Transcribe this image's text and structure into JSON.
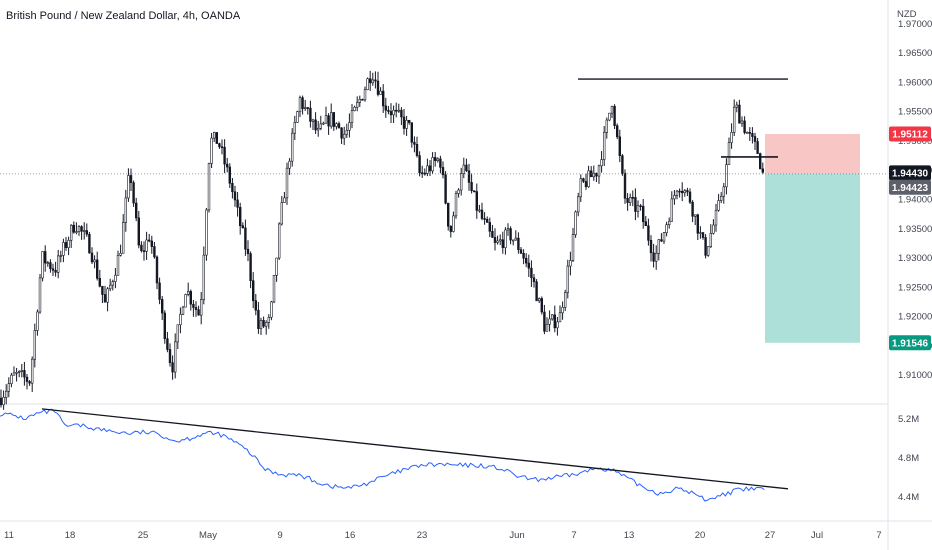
{
  "title": "British Pound / New Zealand Dollar, 4h, OANDA",
  "colors": {
    "candle": "#131722",
    "stop_zone": "#f8bcbc",
    "target_zone": "#a3ddd5",
    "stop_badge": "#f23645",
    "target_badge": "#089981",
    "current_badge": "#131722",
    "last_badge": "#5d606b",
    "indicator": "#2962ff",
    "trendline": "#131722"
  },
  "chart_data": [
    {
      "type": "candlestick",
      "symbol": "GBPNZD",
      "title": "British Pound / New Zealand Dollar, 4h, OANDA",
      "y_unit": "NZD",
      "ylim": [
        1.905,
        1.974
      ],
      "y_ticks": [
        1.97,
        1.965,
        1.96,
        1.955,
        1.95,
        1.945,
        1.94,
        1.935,
        1.93,
        1.925,
        1.92,
        1.915,
        1.91
      ],
      "x_ticks": [
        "11",
        "18",
        "25",
        "May",
        "9",
        "16",
        "23",
        "Jun",
        "7",
        "13",
        "20",
        "27",
        "Jul",
        "7"
      ],
      "price_path": [
        [
          0,
          1.906
        ],
        [
          15,
          1.91
        ],
        [
          30,
          1.909
        ],
        [
          42,
          1.93
        ],
        [
          55,
          1.928
        ],
        [
          75,
          1.936
        ],
        [
          90,
          1.932
        ],
        [
          105,
          1.922
        ],
        [
          120,
          1.931
        ],
        [
          130,
          1.945
        ],
        [
          140,
          1.93
        ],
        [
          150,
          1.934
        ],
        [
          162,
          1.92
        ],
        [
          172,
          1.911
        ],
        [
          185,
          1.925
        ],
        [
          200,
          1.92
        ],
        [
          210,
          1.95
        ],
        [
          218,
          1.95
        ],
        [
          230,
          1.943
        ],
        [
          248,
          1.93
        ],
        [
          258,
          1.918
        ],
        [
          270,
          1.919
        ],
        [
          280,
          1.936
        ],
        [
          290,
          1.948
        ],
        [
          300,
          1.957
        ],
        [
          318,
          1.951
        ],
        [
          330,
          1.954
        ],
        [
          345,
          1.951
        ],
        [
          360,
          1.957
        ],
        [
          372,
          1.962
        ],
        [
          385,
          1.956
        ],
        [
          398,
          1.954
        ],
        [
          410,
          1.952
        ],
        [
          420,
          1.944
        ],
        [
          440,
          1.947
        ],
        [
          450,
          1.934
        ],
        [
          462,
          1.946
        ],
        [
          478,
          1.938
        ],
        [
          495,
          1.932
        ],
        [
          510,
          1.934
        ],
        [
          522,
          1.931
        ],
        [
          535,
          1.925
        ],
        [
          545,
          1.918
        ],
        [
          560,
          1.92
        ],
        [
          570,
          1.93
        ],
        [
          580,
          1.942
        ],
        [
          598,
          1.945
        ],
        [
          612,
          1.957
        ],
        [
          625,
          1.94
        ],
        [
          640,
          1.938
        ],
        [
          655,
          1.93
        ],
        [
          665,
          1.935
        ],
        [
          678,
          1.943
        ],
        [
          690,
          1.94
        ],
        [
          705,
          1.931
        ],
        [
          718,
          1.938
        ],
        [
          726,
          1.945
        ],
        [
          735,
          1.956
        ],
        [
          748,
          1.951
        ],
        [
          758,
          1.948
        ],
        [
          763,
          1.9442
        ]
      ],
      "current_price": 1.9443,
      "last_price": 1.94423,
      "price_labels": {
        "stop": "1.95112",
        "current": "1.94430",
        "last": "1.94423",
        "target": "1.91546"
      },
      "annotations": {
        "resistance_level": 1.9605,
        "entry_marker": 1.9472,
        "short_position": {
          "entry": 1.9443,
          "stop_loss": 1.95112,
          "take_profit": 1.91546
        }
      }
    },
    {
      "type": "line",
      "name": "indicator",
      "y_ticks": [
        "5.2M",
        "4.8M",
        "4.4M"
      ],
      "y_ticks_values": [
        5.2,
        4.8,
        4.4
      ],
      "ylim": [
        4.15,
        5.35
      ],
      "series": [
        {
          "values_path": [
            [
              0,
              5.25
            ],
            [
              15,
              5.23
            ],
            [
              25,
              5.2
            ],
            [
              40,
              5.26
            ],
            [
              55,
              5.28
            ],
            [
              65,
              5.12
            ],
            [
              80,
              5.13
            ],
            [
              95,
              5.1
            ],
            [
              110,
              5.07
            ],
            [
              130,
              5.05
            ],
            [
              145,
              5.06
            ],
            [
              160,
              5.04
            ],
            [
              175,
              4.97
            ],
            [
              190,
              5.0
            ],
            [
              205,
              5.05
            ],
            [
              220,
              5.04
            ],
            [
              235,
              4.96
            ],
            [
              250,
              4.85
            ],
            [
              265,
              4.68
            ],
            [
              280,
              4.63
            ],
            [
              300,
              4.62
            ],
            [
              320,
              4.54
            ],
            [
              335,
              4.5
            ],
            [
              350,
              4.49
            ],
            [
              365,
              4.53
            ],
            [
              380,
              4.59
            ],
            [
              400,
              4.66
            ],
            [
              420,
              4.72
            ],
            [
              440,
              4.73
            ],
            [
              460,
              4.72
            ],
            [
              480,
              4.72
            ],
            [
              500,
              4.69
            ],
            [
              520,
              4.6
            ],
            [
              535,
              4.57
            ],
            [
              550,
              4.59
            ],
            [
              565,
              4.61
            ],
            [
              580,
              4.64
            ],
            [
              600,
              4.7
            ],
            [
              615,
              4.66
            ],
            [
              630,
              4.57
            ],
            [
              645,
              4.49
            ],
            [
              660,
              4.43
            ],
            [
              675,
              4.48
            ],
            [
              690,
              4.45
            ],
            [
              705,
              4.37
            ],
            [
              720,
              4.41
            ],
            [
              735,
              4.46
            ],
            [
              750,
              4.48
            ],
            [
              765,
              4.48
            ]
          ]
        }
      ],
      "annotations": {
        "trendline": [
          [
            42,
            5.3
          ],
          [
            788,
            4.48
          ]
        ]
      }
    }
  ]
}
